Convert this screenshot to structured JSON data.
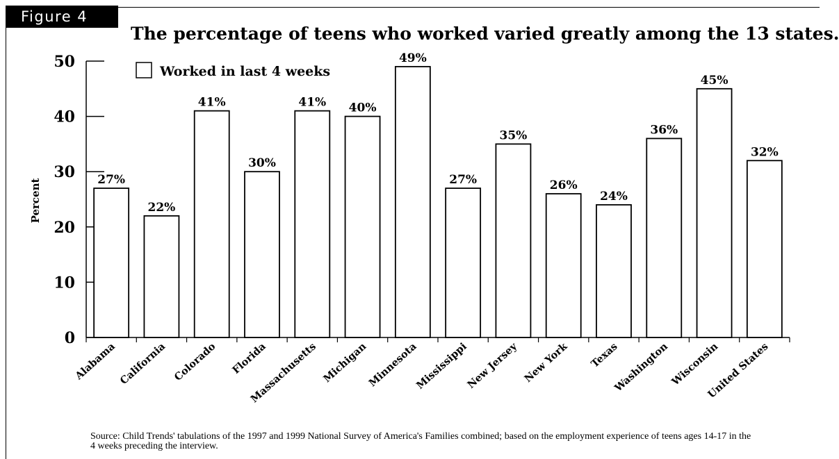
{
  "figure_label": "Figure 4",
  "source_note": "Source: Child Trends' tabulations of the 1997 and 1999 National Survey of America's Families combined; based on the employment experience of teens ages 14-17 in the 4 weeks preceding the interview.",
  "chart_data": {
    "type": "bar",
    "title": "The percentage of teens who worked varied greatly among the 13 states.",
    "xlabel": "",
    "ylabel": "Percent",
    "ylim": [
      0,
      50
    ],
    "yticks": [
      0,
      10,
      20,
      30,
      40,
      50
    ],
    "grid": false,
    "legend_position": "top-left",
    "categories": [
      "Alabama",
      "California",
      "Colorado",
      "Florida",
      "Massachusetts",
      "Michigan",
      "Minnesota",
      "Mississippi",
      "New Jersey",
      "New York",
      "Texas",
      "Washington",
      "Wisconsin",
      "United States"
    ],
    "series": [
      {
        "name": "Worked in last 4 weeks",
        "values": [
          27,
          22,
          41,
          30,
          41,
          40,
          49,
          27,
          35,
          26,
          24,
          36,
          45,
          32
        ],
        "labels": [
          "27%",
          "22%",
          "41%",
          "30%",
          "41%",
          "40%",
          "49%",
          "27%",
          "35%",
          "26%",
          "24%",
          "36%",
          "45%",
          "32%"
        ],
        "fill": "#ffffff",
        "stroke": "#000000"
      }
    ]
  }
}
